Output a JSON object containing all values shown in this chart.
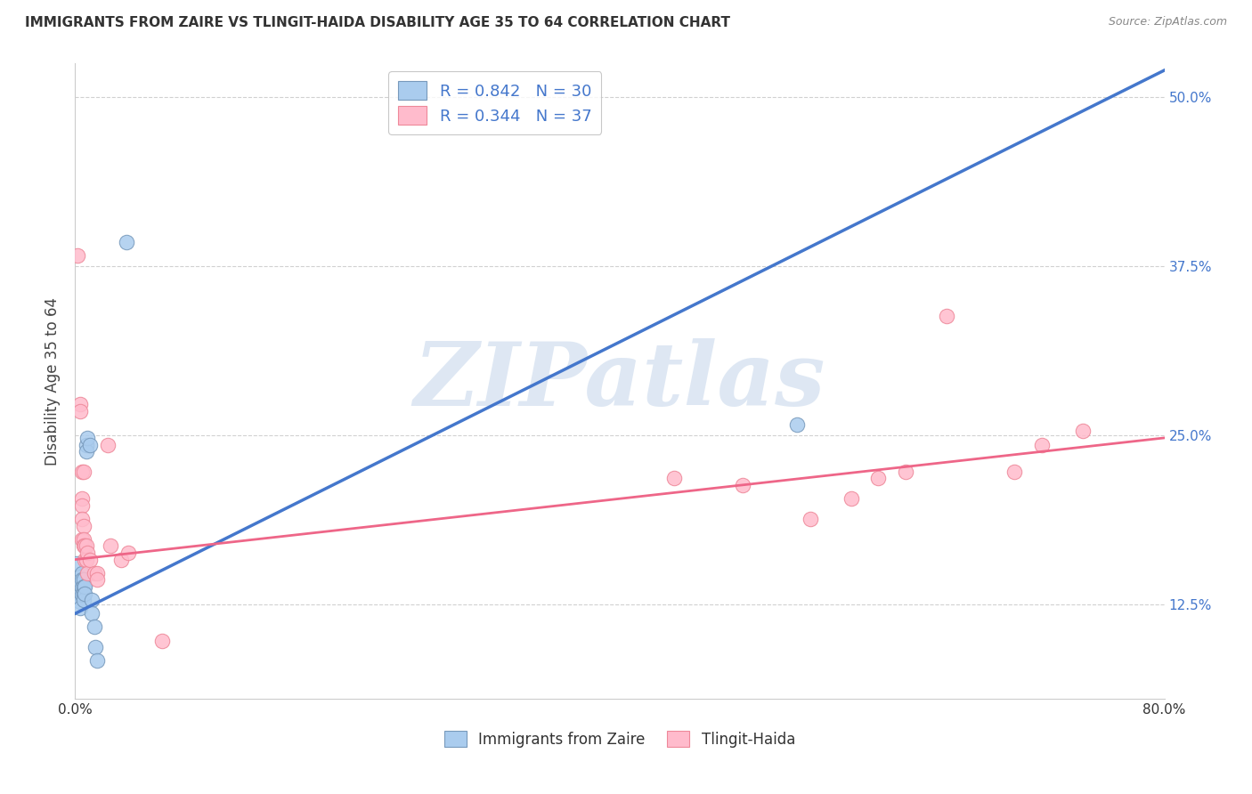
{
  "title": "IMMIGRANTS FROM ZAIRE VS TLINGIT-HAIDA DISABILITY AGE 35 TO 64 CORRELATION CHART",
  "source": "Source: ZipAtlas.com",
  "ylabel_label": "Disability Age 35 to 64",
  "legend1_r": "0.842",
  "legend1_n": "30",
  "legend2_r": "0.344",
  "legend2_n": "37",
  "legend_label1": "Immigrants from Zaire",
  "legend_label2": "Tlingit-Haida",
  "blue_scatter": [
    [
      0.001,
      0.155
    ],
    [
      0.002,
      0.14
    ],
    [
      0.002,
      0.13
    ],
    [
      0.003,
      0.145
    ],
    [
      0.003,
      0.135
    ],
    [
      0.004,
      0.14
    ],
    [
      0.004,
      0.132
    ],
    [
      0.004,
      0.127
    ],
    [
      0.004,
      0.122
    ],
    [
      0.005,
      0.148
    ],
    [
      0.005,
      0.143
    ],
    [
      0.005,
      0.137
    ],
    [
      0.005,
      0.132
    ],
    [
      0.006,
      0.143
    ],
    [
      0.006,
      0.138
    ],
    [
      0.006,
      0.133
    ],
    [
      0.006,
      0.128
    ],
    [
      0.007,
      0.138
    ],
    [
      0.007,
      0.133
    ],
    [
      0.008,
      0.243
    ],
    [
      0.008,
      0.238
    ],
    [
      0.009,
      0.248
    ],
    [
      0.011,
      0.243
    ],
    [
      0.012,
      0.128
    ],
    [
      0.012,
      0.118
    ],
    [
      0.014,
      0.108
    ],
    [
      0.015,
      0.093
    ],
    [
      0.016,
      0.083
    ],
    [
      0.038,
      0.393
    ],
    [
      0.53,
      0.258
    ]
  ],
  "pink_scatter": [
    [
      0.002,
      0.383
    ],
    [
      0.004,
      0.273
    ],
    [
      0.004,
      0.268
    ],
    [
      0.005,
      0.223
    ],
    [
      0.005,
      0.203
    ],
    [
      0.005,
      0.198
    ],
    [
      0.005,
      0.188
    ],
    [
      0.005,
      0.173
    ],
    [
      0.006,
      0.223
    ],
    [
      0.006,
      0.183
    ],
    [
      0.006,
      0.173
    ],
    [
      0.006,
      0.168
    ],
    [
      0.007,
      0.168
    ],
    [
      0.007,
      0.158
    ],
    [
      0.008,
      0.168
    ],
    [
      0.008,
      0.158
    ],
    [
      0.009,
      0.163
    ],
    [
      0.009,
      0.148
    ],
    [
      0.011,
      0.158
    ],
    [
      0.014,
      0.148
    ],
    [
      0.016,
      0.148
    ],
    [
      0.016,
      0.143
    ],
    [
      0.024,
      0.243
    ],
    [
      0.026,
      0.168
    ],
    [
      0.034,
      0.158
    ],
    [
      0.039,
      0.163
    ],
    [
      0.064,
      0.098
    ],
    [
      0.44,
      0.218
    ],
    [
      0.49,
      0.213
    ],
    [
      0.54,
      0.188
    ],
    [
      0.57,
      0.203
    ],
    [
      0.59,
      0.218
    ],
    [
      0.61,
      0.223
    ],
    [
      0.64,
      0.338
    ],
    [
      0.69,
      0.223
    ],
    [
      0.71,
      0.243
    ],
    [
      0.74,
      0.253
    ]
  ],
  "blue_line_x": [
    0.0,
    0.8
  ],
  "blue_line_y": [
    0.118,
    0.52
  ],
  "pink_line_x": [
    0.0,
    0.8
  ],
  "pink_line_y": [
    0.158,
    0.248
  ],
  "xmin": 0.0,
  "xmax": 0.8,
  "ymin": 0.055,
  "ymax": 0.525,
  "y_ticks": [
    0.125,
    0.25,
    0.375,
    0.5
  ],
  "y_tick_labels": [
    "12.5%",
    "25.0%",
    "37.5%",
    "50.0%"
  ],
  "watermark_text": "ZIPatlas",
  "watermark_color": "#C8D8EC",
  "scatter_blue_face": "#AACCEE",
  "scatter_blue_edge": "#7799BB",
  "scatter_pink_face": "#FFBBCC",
  "scatter_pink_edge": "#EE8899",
  "line_blue_color": "#4477CC",
  "line_pink_color": "#EE6688",
  "legend_blue_face": "#AACCEE",
  "legend_blue_edge": "#7799BB",
  "legend_pink_face": "#FFBBCC",
  "legend_pink_edge": "#EE8899",
  "title_color": "#333333",
  "source_color": "#888888",
  "tick_color": "#4477CC",
  "ylabel_color": "#444444",
  "grid_color": "#CCCCCC"
}
